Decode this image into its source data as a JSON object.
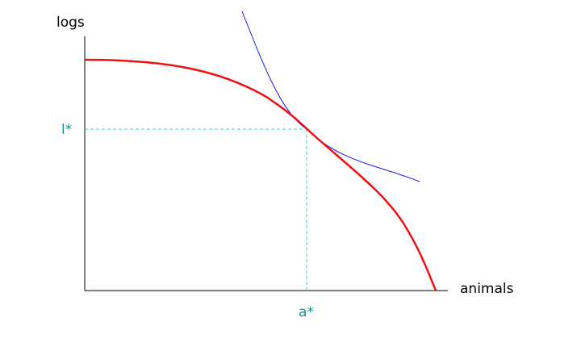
{
  "axes": {
    "y_label": "logs",
    "x_label": "animals"
  },
  "point": {
    "y_label": "l*",
    "x_label": "a*"
  }
}
